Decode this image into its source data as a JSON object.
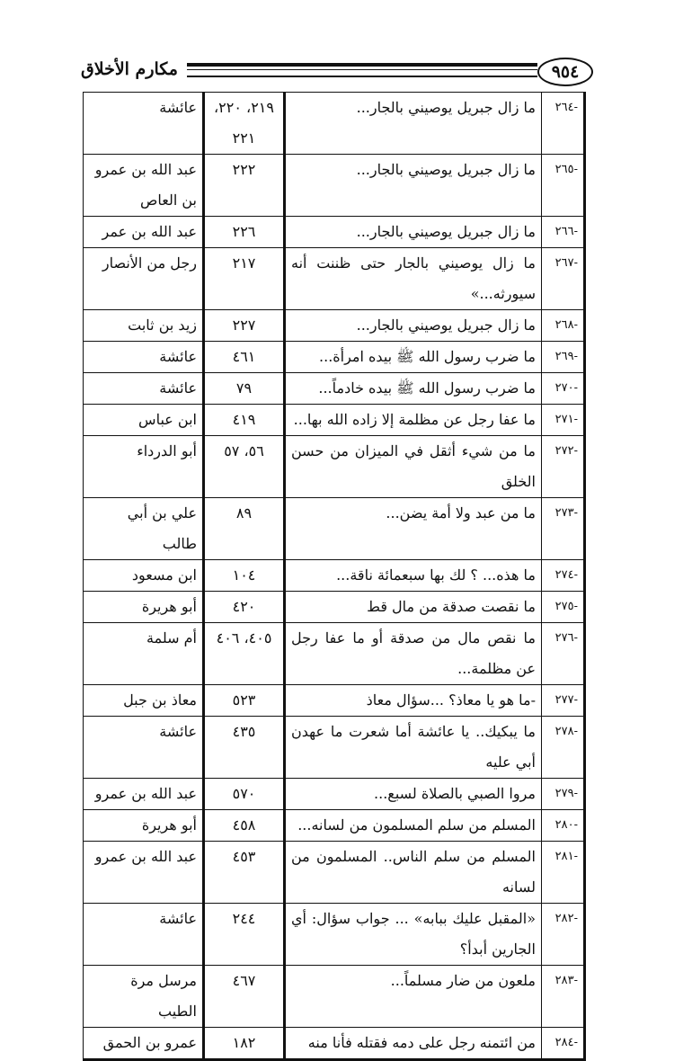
{
  "header": {
    "page_number": "٩٥٤",
    "book_title": "مكارم الأخلاق"
  },
  "rows": [
    {
      "num": "-٢٦٤",
      "text": "ما زال جبريل يوصيني بالجار...",
      "page": "٢١٩، ٢٢٠، ٢٢١",
      "narrator": "عائشة"
    },
    {
      "num": "-٢٦٥",
      "text": "ما زال جبريل يوصيني بالجار...",
      "page": "٢٢٢",
      "narrator": "عبد الله بن عمرو بن العاص"
    },
    {
      "num": "-٢٦٦",
      "text": "ما زال جبريل يوصيني بالجار...",
      "page": "٢٢٦",
      "narrator": "عبد الله بن عمر"
    },
    {
      "num": "-٢٦٧",
      "text": "ما زال يوصيني بالجار حتى ظننت أنه سيورثه...»",
      "page": "٢١٧",
      "narrator": "رجل من الأنصار"
    },
    {
      "num": "-٢٦٨",
      "text": "ما زال جبريل يوصيني بالجار...",
      "page": "٢٢٧",
      "narrator": "زيد بن ثابت"
    },
    {
      "num": "-٢٦٩",
      "text": "ما ضرب رسول الله ﷺ بيده امرأة...",
      "page": "٤٦١",
      "narrator": "عائشة"
    },
    {
      "num": "-٢٧٠",
      "text": "ما ضرب رسول الله ﷺ بيده خادماً...",
      "page": "٧٩",
      "narrator": "عائشة"
    },
    {
      "num": "-٢٧١",
      "text": "ما عفا رجل عن مظلمة إلا زاده الله بها...",
      "page": "٤١٩",
      "narrator": "ابن عباس"
    },
    {
      "num": "-٢٧٢",
      "text": "ما من شيء أثقل في الميزان من حسن الخلق",
      "page": "٥٦، ٥٧",
      "narrator": "أبو الدرداء"
    },
    {
      "num": "-٢٧٣",
      "text": "ما من عبد ولا أمة يضن...",
      "page": "٨٩",
      "narrator": "علي بن أبي طالب"
    },
    {
      "num": "-٢٧٤",
      "text": "ما هذه... ؟ لك بها سبعمائة ناقة...",
      "page": "١٠٤",
      "narrator": "ابن مسعود"
    },
    {
      "num": "-٢٧٥",
      "text": "ما نقصت صدقة من مال قط",
      "page": "٤٢٠",
      "narrator": "أبو هريرة"
    },
    {
      "num": "-٢٧٦",
      "text": "ما نقص مال من صدقة أو ما عفا رجل عن مظلمة...",
      "page": "٤٠٥، ٤٠٦",
      "narrator": "أم سلمة"
    },
    {
      "num": "-٢٧٧",
      "text": "-ما هو يا معاذ؟ ...سؤال معاذ",
      "page": "٥٢٣",
      "narrator": "معاذ بن جبل"
    },
    {
      "num": "-٢٧٨",
      "text": "ما يبكيك.. يا عائشة أما شعرت ما عهدن أبي عليه",
      "page": "٤٣٥",
      "narrator": "عائشة"
    },
    {
      "num": "-٢٧٩",
      "text": "مروا الصبي بالصلاة لسبع...",
      "page": "٥٧٠",
      "narrator": "عبد الله بن عمرو"
    },
    {
      "num": "-٢٨٠",
      "text": "المسلم من سلم المسلمون من لسانه...",
      "page": "٤٥٨",
      "narrator": "أبو هريرة"
    },
    {
      "num": "-٢٨١",
      "text": "المسلم من سلم الناس.. المسلمون من لسانه",
      "page": "٤٥٣",
      "narrator": "عبد الله بن عمرو"
    },
    {
      "num": "-٢٨٢",
      "text": "«المقبل عليك ببابه» ... جواب سؤال: أي الجارين أبدأ؟",
      "page": "٢٤٤",
      "narrator": "عائشة"
    },
    {
      "num": "-٢٨٣",
      "text": "ملعون من ضار مسلماً...",
      "page": "٤٦٧",
      "narrator": "مرسل مرة الطيب"
    },
    {
      "num": "-٢٨٤",
      "text": "من ائتمنه رجل على دمه فقتله فأنا منه",
      "page": "١٨٢",
      "narrator": "عمرو بن الحمق"
    }
  ]
}
